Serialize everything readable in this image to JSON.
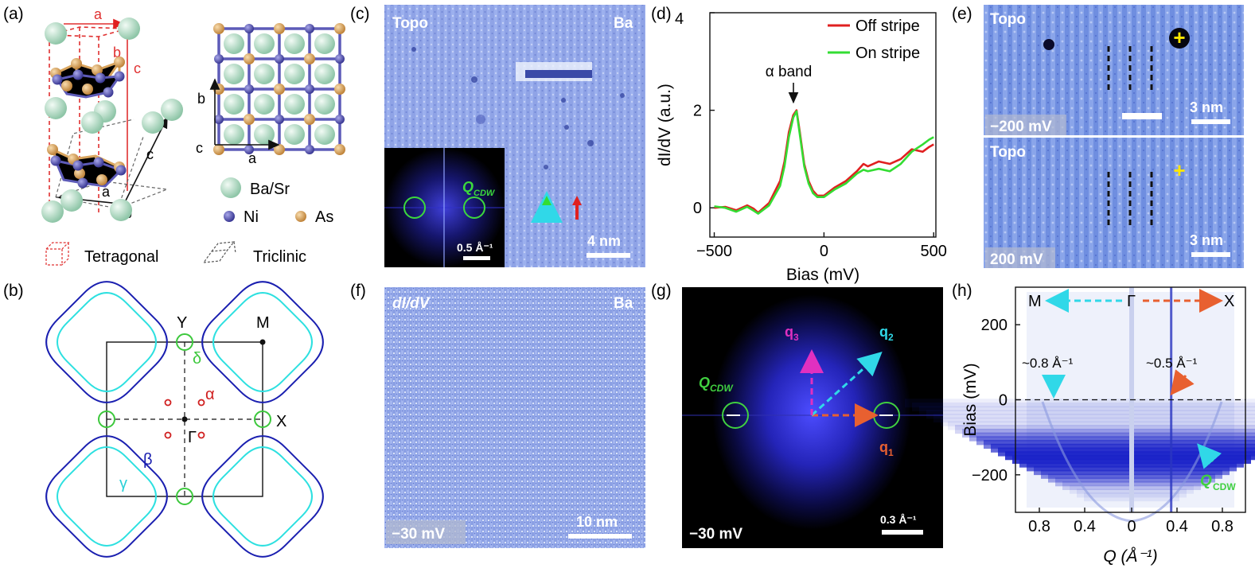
{
  "panel_labels": {
    "a": "(a)",
    "b": "(b)",
    "c": "(c)",
    "d": "(d)",
    "e": "(e)",
    "f": "(f)",
    "g": "(g)",
    "h": "(h)"
  },
  "panel_a": {
    "tetragonal_axes": {
      "a": "a",
      "b": "b",
      "c": "c"
    },
    "triclinic_axes": {
      "a": "a",
      "b": "b",
      "c": "c"
    },
    "topview_axes": {
      "a": "a",
      "b": "b",
      "c": "c"
    },
    "legend": {
      "basr": "Ba/Sr",
      "ni": "Ni",
      "as": "As",
      "tetragonal": "Tetragonal",
      "triclinic": "Triclinic"
    },
    "colors": {
      "basr": "#b8dcc8",
      "ni": "#5d5bb8",
      "as": "#d9a55e",
      "tetragonal": "#e03030",
      "triclinic": "#555555"
    }
  },
  "panel_b": {
    "labels": {
      "Y": "Y",
      "M": "M",
      "X": "X",
      "Gamma": "Γ",
      "alpha": "α",
      "beta": "β",
      "gamma": "γ",
      "delta": "δ"
    },
    "colors": {
      "beta": "#1a1fb0",
      "gamma": "#2de0e0",
      "delta": "#3cc83c",
      "alpha": "#d02020"
    }
  },
  "panel_c": {
    "topo": "Topo",
    "element": "Ba",
    "q_cdw": "Q",
    "q_cdw_sub": "CDW",
    "scale_inset": "0.5 Å⁻¹",
    "scale": "4 nm"
  },
  "panel_d": {
    "chart_data": {
      "type": "line",
      "title": "",
      "xlabel": "Bias (mV)",
      "ylabel": "dI/dV (a.u.)",
      "xlim": [
        -520,
        510
      ],
      "ylim": [
        -0.6,
        4
      ],
      "xticks": [
        -500,
        0,
        500
      ],
      "yticks": [
        0,
        2,
        4
      ],
      "annotation": "α band",
      "series": [
        {
          "name": "Off stripe",
          "color": "#e02020",
          "x": [
            -500,
            -450,
            -400,
            -350,
            -320,
            -300,
            -250,
            -200,
            -180,
            -160,
            -140,
            -125,
            -110,
            -90,
            -70,
            -50,
            -30,
            0,
            50,
            100,
            150,
            180,
            200,
            250,
            300,
            350,
            400,
            450,
            480,
            500
          ],
          "y": [
            0.0,
            0.02,
            -0.05,
            0.05,
            -0.02,
            -0.1,
            0.1,
            0.55,
            0.95,
            1.55,
            1.9,
            2.0,
            1.55,
            0.9,
            0.55,
            0.35,
            0.25,
            0.25,
            0.42,
            0.55,
            0.75,
            0.9,
            0.85,
            0.95,
            0.9,
            1.0,
            1.2,
            1.15,
            1.25,
            1.3
          ]
        },
        {
          "name": "On stripe",
          "color": "#33dd33",
          "x": [
            -500,
            -450,
            -400,
            -350,
            -320,
            -300,
            -250,
            -200,
            -180,
            -160,
            -140,
            -125,
            -110,
            -90,
            -70,
            -50,
            -30,
            0,
            50,
            100,
            150,
            180,
            200,
            250,
            300,
            350,
            400,
            450,
            480,
            500
          ],
          "y": [
            0.03,
            0.0,
            -0.08,
            0.02,
            -0.06,
            -0.12,
            0.05,
            0.45,
            0.85,
            1.45,
            1.85,
            1.98,
            1.5,
            0.85,
            0.5,
            0.3,
            0.22,
            0.22,
            0.38,
            0.5,
            0.7,
            0.78,
            0.75,
            0.8,
            0.75,
            0.9,
            1.15,
            1.3,
            1.4,
            1.45
          ]
        }
      ]
    }
  },
  "panel_e": {
    "topo_top": "Topo",
    "topo_bottom": "Topo",
    "bias_top": "−200 mV",
    "bias_bottom": "200 mV",
    "scale": "3 nm",
    "marker": "+"
  },
  "panel_f": {
    "didv_label": "dI/dV",
    "element": "Ba",
    "bias": "−30 mV",
    "scale": "10 nm"
  },
  "panel_g": {
    "q_cdw": "Q",
    "q_cdw_sub": "CDW",
    "q1": "q",
    "q1_sub": "1",
    "q2": "q",
    "q2_sub": "2",
    "q3": "q",
    "q3_sub": "3",
    "bias": "−30 mV",
    "scale": "0.3 Å⁻¹",
    "colors": {
      "q1": "#e86030",
      "q2": "#30d8e8",
      "q3": "#e030c0",
      "qcdw": "#40d040"
    }
  },
  "panel_h": {
    "chart_data": {
      "type": "heatmap",
      "xlabel": "Q (Å⁻¹)",
      "ylabel": "Bias (mV)",
      "xticks": [
        "0.8",
        "0.4",
        "0",
        "0.4",
        "0.8"
      ],
      "yticks": [
        -200,
        0,
        200
      ],
      "ylim": [
        -300,
        300
      ],
      "directions": {
        "left": "M",
        "center": "Γ",
        "right": "X"
      },
      "annotations": {
        "left": "~0.8 Å⁻¹",
        "right": "~0.5 Å⁻¹",
        "q_cdw": "Q",
        "q_cdw_sub": "CDW"
      }
    }
  }
}
